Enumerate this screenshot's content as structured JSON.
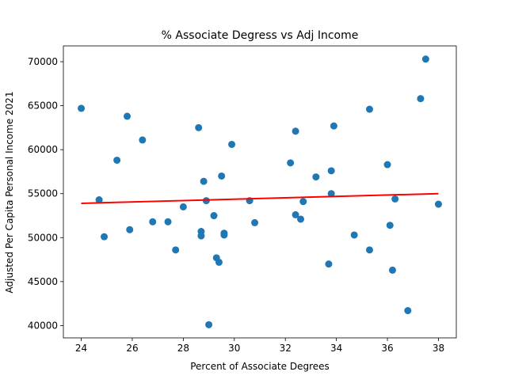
{
  "chart_data": {
    "type": "scatter",
    "title": "% Associate Degress vs Adj Income",
    "xlabel": "Percent of Associate Degrees",
    "ylabel": "Adjusted Per Capita Personal Income 2021",
    "xlim": [
      23.3,
      38.7
    ],
    "ylim": [
      38600,
      71800
    ],
    "x_ticks": [
      24,
      26,
      28,
      30,
      32,
      34,
      36,
      38
    ],
    "y_ticks": [
      40000,
      45000,
      50000,
      55000,
      60000,
      65000,
      70000
    ],
    "grid": false,
    "legend": "none",
    "colors": {
      "points": "#1f77b4",
      "regression": "#ff0000"
    },
    "series": [
      {
        "marker": "circle",
        "x": [
          24.0,
          24.7,
          24.9,
          25.4,
          25.8,
          25.9,
          26.4,
          26.8,
          27.4,
          27.7,
          28.0,
          28.6,
          28.7,
          28.7,
          28.8,
          28.9,
          29.0,
          29.2,
          29.3,
          29.4,
          29.5,
          29.6,
          29.6,
          29.9,
          30.6,
          30.8,
          32.2,
          32.4,
          32.4,
          32.6,
          32.7,
          33.2,
          33.7,
          33.8,
          33.8,
          33.9,
          34.7,
          35.3,
          35.3,
          36.0,
          36.1,
          36.2,
          36.3,
          36.8,
          37.3,
          37.5,
          38.0
        ],
        "y": [
          64700,
          54300,
          50100,
          58800,
          63800,
          50900,
          61100,
          51800,
          51800,
          48600,
          53500,
          62500,
          50700,
          50200,
          56400,
          54200,
          40100,
          52500,
          47700,
          47200,
          57000,
          50500,
          50300,
          60600,
          54200,
          51700,
          58500,
          62100,
          52600,
          52100,
          54100,
          56900,
          47000,
          55000,
          57600,
          62700,
          50300,
          64600,
          48600,
          58300,
          51400,
          46300,
          54400,
          41700,
          65800,
          70300,
          53800
        ]
      }
    ],
    "regression_line": {
      "x": [
        24.0,
        38.0
      ],
      "y": [
        53900,
        55000
      ]
    }
  }
}
